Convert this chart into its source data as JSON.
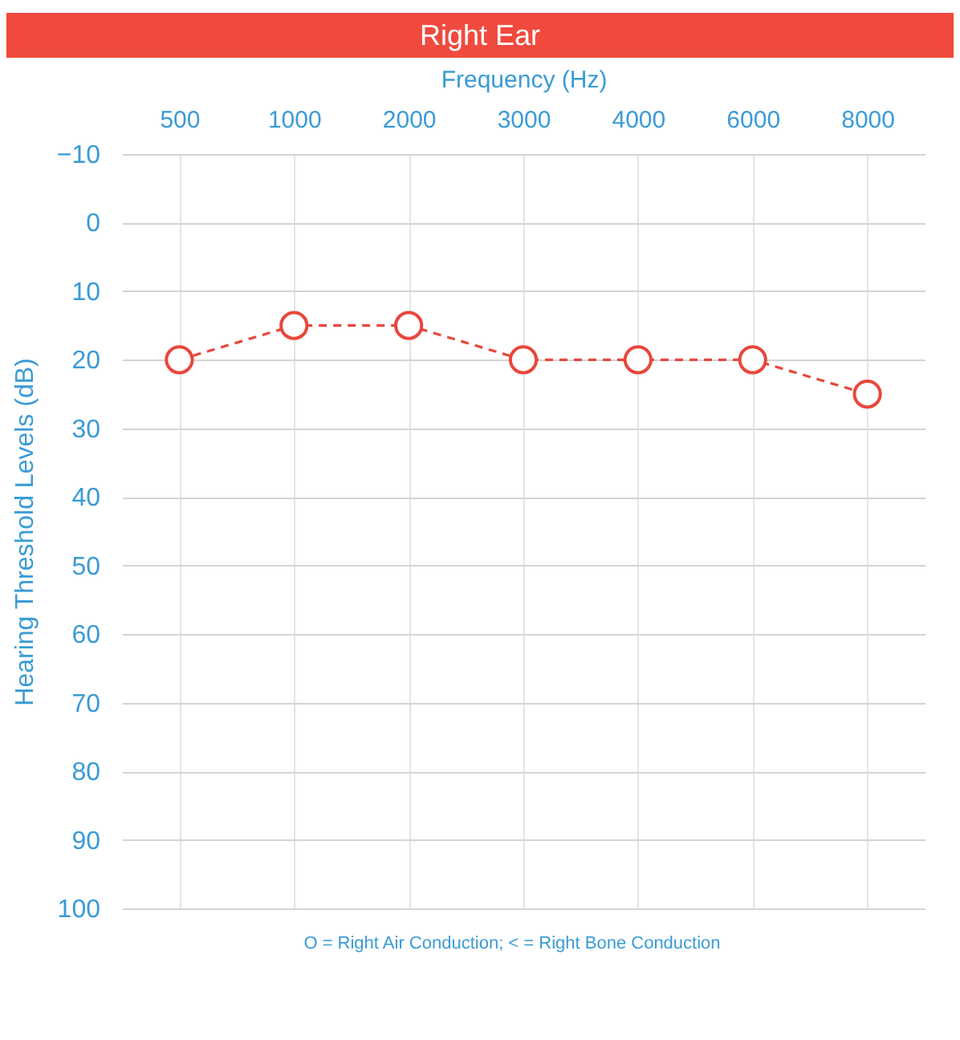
{
  "chart_data": {
    "type": "line",
    "title": "Right Ear",
    "xlabel": "Frequency (Hz)",
    "ylabel": "Hearing Threshold Levels (dB)",
    "categories": [
      "500",
      "1000",
      "2000",
      "3000",
      "4000",
      "6000",
      "8000"
    ],
    "series": [
      {
        "color": "#e8473c",
        "values": [
          20,
          15,
          15,
          20,
          20,
          20,
          25
        ]
      }
    ],
    "ylim": [
      100,
      -10
    ],
    "yticks": [
      -10,
      0,
      10,
      20,
      30,
      40,
      50,
      60,
      70,
      80,
      90,
      100
    ],
    "grid": true,
    "marker": "circle",
    "line_style": "dashed",
    "annotations": [
      "O = Right Air Conduction;  < = Right Bone Conduction"
    ]
  }
}
